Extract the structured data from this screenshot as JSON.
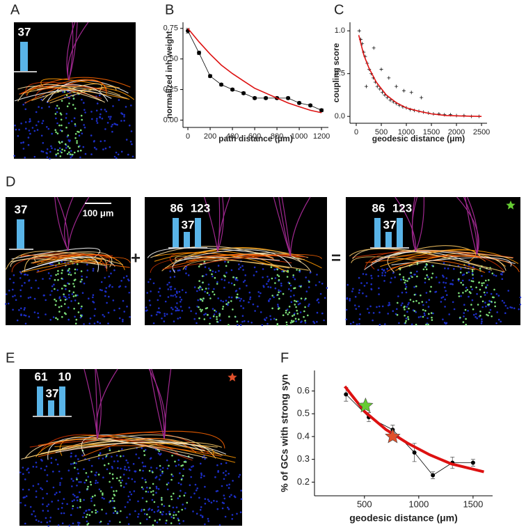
{
  "chart_data": [
    {
      "type": "line",
      "label": "B",
      "xlabel": "path distance (μm)",
      "ylabel": "normalized inh weight",
      "xlim": [
        -44,
        1262
      ],
      "xticks": [
        0,
        200,
        400,
        600,
        800,
        1000,
        1200
      ],
      "ylim": [
        -0.06,
        0.8
      ],
      "yticks": [
        {
          "value": 0,
          "label": "0.00"
        },
        0.25,
        {
          "value": 0.5,
          "label": "0.50"
        },
        0.75
      ],
      "series": [
        {
          "color": "#000000",
          "marker": "circle",
          "x": [
            0,
            100,
            200,
            300,
            400,
            500,
            600,
            700,
            800,
            900,
            1000,
            1100,
            1200
          ],
          "values": [
            0.73,
            0.55,
            0.36,
            0.29,
            0.25,
            0.22,
            0.18,
            0.18,
            0.18,
            0.18,
            0.14,
            0.12,
            0.08
          ],
          "errors": [
            0.02,
            0.015,
            0.012,
            0.01,
            0.01,
            0.01,
            0.01,
            0.01,
            0.01,
            0.01,
            0.01,
            0.01,
            0.012
          ]
        },
        {
          "color": "#dd1111",
          "marker": "none",
          "x": [
            0,
            100,
            200,
            300,
            400,
            500,
            600,
            700,
            800,
            900,
            1000,
            1100,
            1200
          ],
          "values": [
            0.75,
            0.64,
            0.54,
            0.45,
            0.38,
            0.32,
            0.26,
            0.22,
            0.18,
            0.14,
            0.11,
            0.08,
            0.06
          ]
        }
      ]
    },
    {
      "type": "scatter",
      "label": "C",
      "xlabel": "geodesic distance (μm)",
      "ylabel": "coupling score",
      "xlim": [
        -125,
        2610
      ],
      "xticks": [
        0,
        500,
        1000,
        1500,
        2000,
        2500
      ],
      "ylim": [
        -0.08,
        1.1
      ],
      "yticks": [
        {
          "value": 0,
          "label": "0.0"
        },
        0.5,
        {
          "value": 1,
          "label": "1.0"
        }
      ],
      "series": [
        {
          "color": "#111111",
          "marker": "plus",
          "x": [
            60,
            90,
            120,
            150,
            180,
            220,
            260,
            300,
            340,
            380,
            420,
            470,
            520,
            570,
            620,
            680,
            740,
            800,
            860,
            930,
            1000,
            1080,
            1160,
            1250,
            1340,
            1440,
            1540,
            1650,
            1760,
            1880,
            2000,
            2150,
            2300,
            2450,
            200,
            350,
            500,
            650,
            800,
            950,
            1100,
            1300
          ],
          "values": [
            1.0,
            0.9,
            0.85,
            0.75,
            0.7,
            0.62,
            0.55,
            0.5,
            0.45,
            0.4,
            0.35,
            0.32,
            0.28,
            0.25,
            0.22,
            0.19,
            0.17,
            0.15,
            0.13,
            0.11,
            0.1,
            0.08,
            0.07,
            0.06,
            0.05,
            0.04,
            0.03,
            0.03,
            0.02,
            0.02,
            0.01,
            0.01,
            0.0,
            0.0,
            0.35,
            0.8,
            0.55,
            0.45,
            0.35,
            0.3,
            0.28,
            0.22
          ]
        },
        {
          "color": "#dd1111",
          "marker": "none",
          "x": [
            50,
            150,
            250,
            400,
            600,
            800,
            1000,
            1250,
            1500,
            1800,
            2100,
            2500
          ],
          "values": [
            0.95,
            0.72,
            0.57,
            0.4,
            0.25,
            0.16,
            0.1,
            0.06,
            0.03,
            0.01,
            0.005,
            0.0
          ]
        }
      ]
    },
    {
      "type": "line",
      "label": "F",
      "xlabel": "geodesic distance (μm)",
      "ylabel": "% of GCs with strong syn",
      "xlim": [
        40,
        1680
      ],
      "xticks": [
        500,
        1000,
        1500
      ],
      "ylim": [
        0.14,
        0.69
      ],
      "yticks": [
        0.2,
        0.3,
        0.4,
        0.5,
        0.6
      ],
      "series": [
        {
          "color": "#000000",
          "marker": "circle",
          "x": [
            330,
            540,
            760,
            960,
            1130,
            1310,
            1500
          ],
          "values": [
            0.585,
            0.485,
            0.43,
            0.33,
            0.23,
            0.285,
            0.285
          ],
          "errors": [
            0.03,
            0.02,
            0.02,
            0.04,
            0.015,
            0.025,
            0.015
          ]
        },
        {
          "color": "#dd1111",
          "marker": "none",
          "x": [
            320,
            500,
            700,
            900,
            1100,
            1300,
            1600
          ],
          "values": [
            0.62,
            0.51,
            0.43,
            0.37,
            0.32,
            0.28,
            0.245
          ]
        },
        {
          "color": "#66cc33",
          "marker": "star",
          "x": [
            510
          ],
          "values": [
            0.535
          ]
        },
        {
          "color": "#e0502a",
          "marker": "star",
          "x": [
            760
          ],
          "values": [
            0.4
          ]
        }
      ]
    }
  ],
  "image_panels": [
    {
      "label": "A",
      "insets": [
        {
          "bars": [
            37
          ]
        }
      ]
    },
    {
      "label": "D",
      "insets": [
        {
          "bars": [
            37
          ],
          "scale_bar": "100 μm"
        },
        {
          "bars": [
            86,
            37,
            123
          ]
        },
        {
          "bars": [
            86,
            37,
            123
          ],
          "star": "#66cc33"
        }
      ],
      "operators": [
        "+",
        "="
      ]
    },
    {
      "label": "E",
      "insets": [
        {
          "bars": [
            61,
            37,
            10
          ],
          "star": "#e0502a"
        }
      ]
    }
  ]
}
